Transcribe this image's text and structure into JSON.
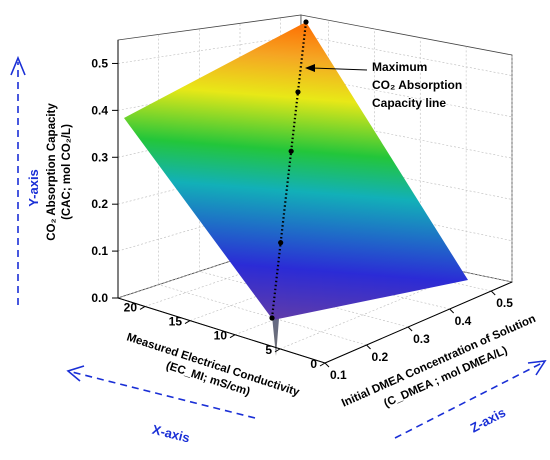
{
  "chart_data": {
    "type": "surface",
    "y_axis": {
      "label": "CO₂ Absorption Capacity",
      "label_units": "(CAC; mol CO₂/L)",
      "ticks": [
        "0.0",
        "0.1",
        "0.2",
        "0.3",
        "0.4",
        "0.5"
      ],
      "range": [
        0.0,
        0.55
      ]
    },
    "x_axis": {
      "label": "Measured Electrical Conductivity",
      "label_units": "(EC_MI; mS/cm)",
      "ticks": [
        "0",
        "5",
        "10",
        "15",
        "20"
      ],
      "range": [
        0,
        23
      ]
    },
    "z_axis": {
      "label": "Initial DMEA Concentration of Solution",
      "label_units": "(C_DMEA ; mol DMEA/L)",
      "ticks": [
        "0.1",
        "0.2",
        "0.3",
        "0.4",
        "0.5"
      ],
      "range": [
        0.1,
        0.5
      ]
    },
    "surface_corners": [
      {
        "ec": 0,
        "conc": 0.1,
        "cac": 0.0
      },
      {
        "ec": 0,
        "conc": 0.5,
        "cac": 0.0
      },
      {
        "ec": 22,
        "conc": 0.5,
        "cac": 0.55
      },
      {
        "ec": 22,
        "conc": 0.1,
        "cac": 0.41
      }
    ],
    "max_line_label": [
      "Maximum",
      "CO₂ Absorption",
      "Capacity line"
    ],
    "max_line_points": [
      {
        "cac": 0.0
      },
      {
        "cac": 0.14
      },
      {
        "cac": 0.31
      },
      {
        "cac": 0.42
      },
      {
        "cac": 0.55
      }
    ],
    "colorscale": [
      "#6a3fa0",
      "#2b2bd6",
      "#12b0b8",
      "#23c63a",
      "#e8e817",
      "#f5a623",
      "#ff6a00"
    ],
    "direction_labels": {
      "y": "Y-axis",
      "x": "X-axis",
      "z": "Z-axis"
    },
    "accent_color": "#1a2fd6"
  }
}
